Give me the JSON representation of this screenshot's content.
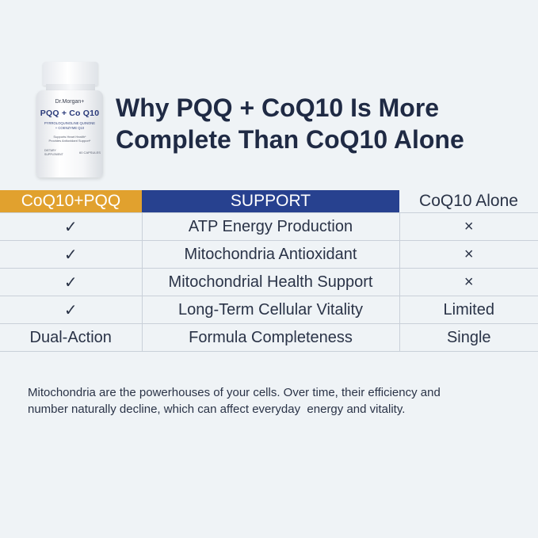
{
  "product": {
    "brand": "Dr.Morgan+",
    "name": "PQQ + Co Q10",
    "subtitle_line1": "PYRROLOQUINOLINE QUINONE",
    "subtitle_line2": "+ COENZYME Q10",
    "claim_line1": "Supports Heart Health*",
    "claim_line2": "Provides Antioxidant Support*",
    "diet_line1": "DIETARY",
    "diet_line2": "SUPPLEMENT",
    "count": "60 CAPSULES"
  },
  "headline": {
    "line1": "Why PQQ + CoQ10 Is More",
    "line2": "Complete Than CoQ10 Alone"
  },
  "table": {
    "headers": {
      "combo": "CoQ10+PQQ",
      "support": "SUPPORT",
      "alone": "CoQ10 Alone"
    },
    "rows": [
      {
        "combo": "✓",
        "support": "ATP Energy Production",
        "alone": "×"
      },
      {
        "combo": "✓",
        "support": "Mitochondria Antioxidant",
        "alone": "×"
      },
      {
        "combo": "✓",
        "support": "Mitochondrial Health Support",
        "alone": "×"
      },
      {
        "combo": "✓",
        "support": "Long-Term Cellular Vitality",
        "alone": "Limited"
      },
      {
        "combo": "Dual-Action",
        "support": "Formula Completeness",
        "alone": "Single"
      }
    ]
  },
  "footnote": "Mitochondria are the powerhouses of your cells. Over time, their efficiency and\nnumber naturally decline, which can affect everyday  energy and vitality.",
  "colors": {
    "background": "#eff3f6",
    "combo_header": "#e1a12e",
    "support_header": "#27418f",
    "text_dark": "#1f2a44"
  }
}
